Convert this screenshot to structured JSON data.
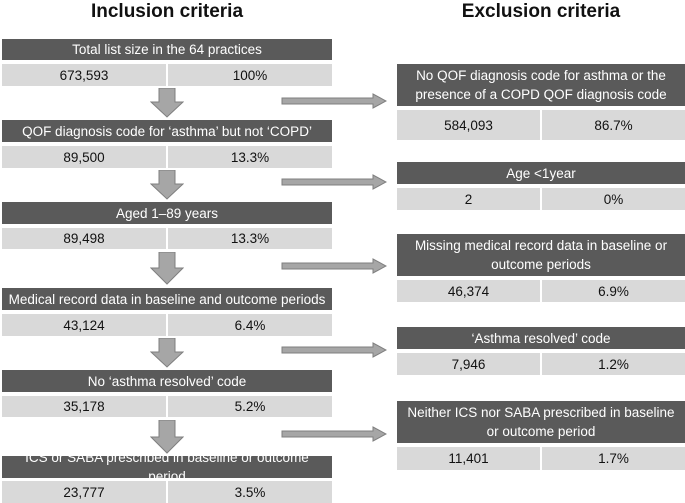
{
  "headings": {
    "inclusion": "Inclusion criteria",
    "exclusion": "Exclusion criteria"
  },
  "inclusion": [
    {
      "label": "Total list size in the 64 practices",
      "count": "673,593",
      "percent": "100%"
    },
    {
      "label": "QOF diagnosis code for ‘asthma’ but not ‘COPD’",
      "count": "89,500",
      "percent": "13.3%"
    },
    {
      "label": "Aged 1–89 years",
      "count": "89,498",
      "percent": "13.3%"
    },
    {
      "label": "Medical record data in baseline and outcome periods",
      "count": "43,124",
      "percent": "6.4%"
    },
    {
      "label": "No ‘asthma resolved’ code",
      "count": "35,178",
      "percent": "5.2%"
    },
    {
      "label": "ICS or SABA prescribed in baseline or outcome period",
      "count": "23,777",
      "percent": "3.5%"
    }
  ],
  "exclusion": [
    {
      "label": "No QOF diagnosis code for asthma or the presence of a COPD QOF diagnosis code",
      "count": "584,093",
      "percent": "86.7%"
    },
    {
      "label": "Age <1year",
      "count": "2",
      "percent": "0%"
    },
    {
      "label": "Missing medical record data in baseline or outcome periods",
      "count": "46,374",
      "percent": "6.9%"
    },
    {
      "label": "‘Asthma resolved’ code",
      "count": "7,946",
      "percent": "1.2%"
    },
    {
      "label": "Neither ICS nor SABA prescribed in baseline or outcome period",
      "count": "11,401",
      "percent": "1.7%"
    }
  ],
  "colors": {
    "label_fill": "#5a5a5a",
    "value_fill": "#d9d9d9",
    "arrow_fill": "#a6a6a6",
    "arrow_stroke": "#7f7f7f"
  }
}
